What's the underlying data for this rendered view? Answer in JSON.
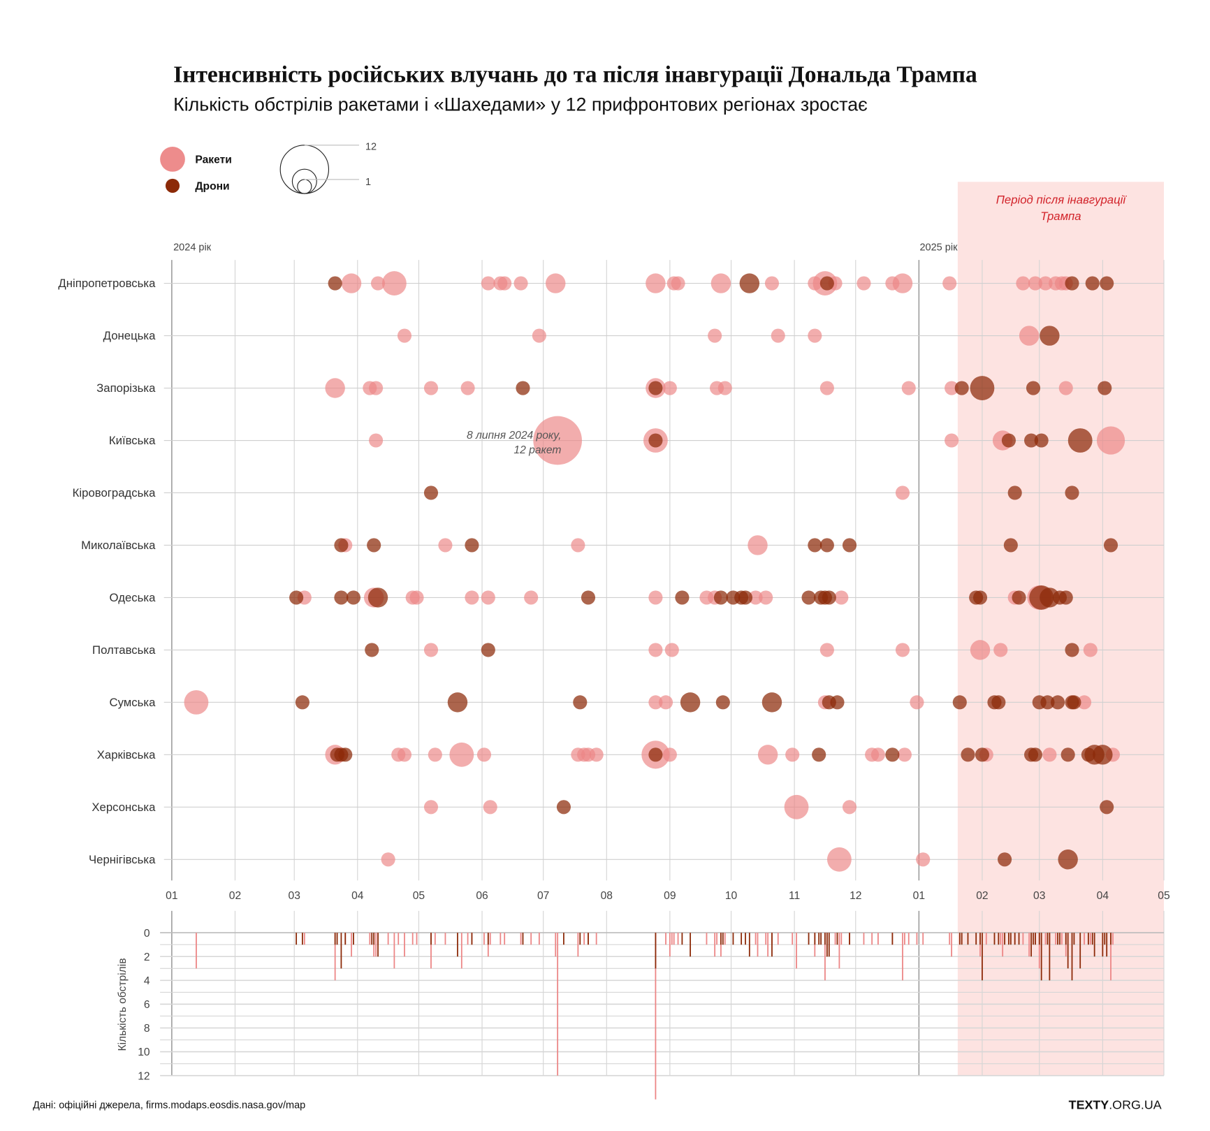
{
  "header": {
    "title": "Інтенсивність російських влучань до та після інавгурації Дональда Трампа",
    "subtitle": "Кількість обстрілів ракетами і «Шахедами» у 12 прифронтових регіонах зростає"
  },
  "legend": {
    "rockets_label": "Ракети",
    "drones_label": "Дрони",
    "size_max_label": "12",
    "size_min_label": "1"
  },
  "colors": {
    "rockets": "#ec8686",
    "drones": "#8c2a08",
    "period_bg": "#fde3e1",
    "period_text": "#d2232a"
  },
  "period": {
    "label_line1": "Період після інавгурації",
    "label_line2": "Трампа",
    "start": "2025-01-20",
    "end": "2025-05-01"
  },
  "year_labels": [
    {
      "date": "2024-01-01",
      "label": "2024 рік"
    },
    {
      "date": "2025-01-01",
      "label": "2025 рік"
    }
  ],
  "annotation": {
    "line1": "8 липня 2024 року,",
    "line2": "12 ракет"
  },
  "footer": {
    "source": "Дані: офіційні джерела, firms.modaps.eosdis.nasa.gov/map",
    "logo_bold": "TEXTY",
    "logo_rest": ".ORG.UA"
  },
  "chart_data": [
    {
      "type": "scatter",
      "title": "Інтенсивність російських влучань до та після інавгурації Дональда Трампа",
      "subtitle": "Кількість обстрілів ракетами і «Шахедами» у 12 прифронтових регіонах зростає",
      "xlim": [
        "2024-01-01",
        "2025-05-01"
      ],
      "x_ticks": [
        {
          "date": "2024-01-01",
          "label": "01"
        },
        {
          "date": "2024-02-01",
          "label": "02"
        },
        {
          "date": "2024-03-01",
          "label": "03"
        },
        {
          "date": "2024-04-01",
          "label": "04"
        },
        {
          "date": "2024-05-01",
          "label": "05"
        },
        {
          "date": "2024-06-01",
          "label": "06"
        },
        {
          "date": "2024-07-01",
          "label": "07"
        },
        {
          "date": "2024-08-01",
          "label": "08"
        },
        {
          "date": "2024-09-01",
          "label": "09"
        },
        {
          "date": "2024-10-01",
          "label": "10"
        },
        {
          "date": "2024-11-01",
          "label": "11"
        },
        {
          "date": "2024-12-01",
          "label": "12"
        },
        {
          "date": "2025-01-01",
          "label": "01"
        },
        {
          "date": "2025-02-01",
          "label": "02"
        },
        {
          "date": "2025-03-01",
          "label": "03"
        },
        {
          "date": "2025-04-01",
          "label": "04"
        },
        {
          "date": "2025-05-01",
          "label": "05"
        }
      ],
      "grid": true,
      "size_encoding": "count",
      "series": [
        {
          "name": "Ракети"
        },
        {
          "name": "Дрони"
        }
      ],
      "regions": [
        {
          "name": "Дніпропетровська",
          "rockets": [
            [
              "2024-03-29",
              2
            ],
            [
              "2024-04-11",
              1
            ],
            [
              "2024-04-19",
              3
            ],
            [
              "2024-06-04",
              1
            ],
            [
              "2024-06-10",
              1
            ],
            [
              "2024-06-12",
              1
            ],
            [
              "2024-06-20",
              1
            ],
            [
              "2024-07-07",
              2
            ],
            [
              "2024-08-25",
              2
            ],
            [
              "2024-09-03",
              1
            ],
            [
              "2024-09-05",
              1
            ],
            [
              "2024-09-26",
              2
            ],
            [
              "2024-10-21",
              1
            ],
            [
              "2024-11-11",
              1
            ],
            [
              "2024-11-16",
              3
            ],
            [
              "2024-11-21",
              1
            ],
            [
              "2024-12-05",
              1
            ],
            [
              "2024-12-19",
              1
            ],
            [
              "2024-12-24",
              2
            ],
            [
              "2025-01-16",
              1
            ],
            [
              "2025-02-21",
              1
            ],
            [
              "2025-02-27",
              1
            ],
            [
              "2025-03-04",
              1
            ],
            [
              "2025-03-09",
              1
            ],
            [
              "2025-03-12",
              1
            ],
            [
              "2025-03-14",
              1
            ]
          ],
          "drones": [
            [
              "2024-03-21",
              1
            ],
            [
              "2024-10-10",
              2
            ],
            [
              "2024-11-17",
              1
            ],
            [
              "2025-03-17",
              1
            ],
            [
              "2025-03-27",
              1
            ],
            [
              "2025-04-03",
              1
            ]
          ]
        },
        {
          "name": "Донецька",
          "rockets": [
            [
              "2024-04-24",
              1
            ],
            [
              "2024-06-29",
              1
            ],
            [
              "2024-09-23",
              1
            ],
            [
              "2024-10-24",
              1
            ],
            [
              "2024-11-11",
              1
            ],
            [
              "2025-02-24",
              2
            ]
          ],
          "drones": [
            [
              "2025-03-06",
              2
            ]
          ]
        },
        {
          "name": "Запорізька",
          "rockets": [
            [
              "2024-03-21",
              2
            ],
            [
              "2024-04-07",
              1
            ],
            [
              "2024-04-10",
              1
            ],
            [
              "2024-05-07",
              1
            ],
            [
              "2024-05-25",
              1
            ],
            [
              "2024-08-25",
              2
            ],
            [
              "2024-09-01",
              1
            ],
            [
              "2024-09-24",
              1
            ],
            [
              "2024-09-28",
              1
            ],
            [
              "2024-11-17",
              1
            ],
            [
              "2024-12-27",
              1
            ],
            [
              "2025-01-17",
              1
            ],
            [
              "2025-03-14",
              1
            ]
          ],
          "drones": [
            [
              "2024-06-21",
              1
            ],
            [
              "2024-08-25",
              1
            ],
            [
              "2025-01-22",
              1
            ],
            [
              "2025-02-01",
              3
            ],
            [
              "2025-02-26",
              1
            ],
            [
              "2025-04-02",
              1
            ]
          ]
        },
        {
          "name": "Київська",
          "rockets": [
            [
              "2024-04-10",
              1
            ],
            [
              "2024-07-08",
              12
            ],
            [
              "2024-08-25",
              3
            ],
            [
              "2025-01-17",
              1
            ],
            [
              "2025-02-11",
              2
            ],
            [
              "2025-04-05",
              4
            ]
          ],
          "drones": [
            [
              "2024-08-25",
              1
            ],
            [
              "2025-02-14",
              1
            ],
            [
              "2025-02-25",
              1
            ],
            [
              "2025-03-02",
              1
            ],
            [
              "2025-03-21",
              3
            ]
          ]
        },
        {
          "name": "Кіровоградська",
          "rockets": [
            [
              "2024-12-24",
              1
            ]
          ],
          "drones": [
            [
              "2024-05-07",
              1
            ],
            [
              "2025-02-17",
              1
            ],
            [
              "2025-03-17",
              1
            ]
          ]
        },
        {
          "name": "Миколаївська",
          "rockets": [
            [
              "2024-03-26",
              1
            ],
            [
              "2024-05-14",
              1
            ],
            [
              "2024-07-18",
              1
            ],
            [
              "2024-10-14",
              2
            ]
          ],
          "drones": [
            [
              "2024-03-24",
              1
            ],
            [
              "2024-04-09",
              1
            ],
            [
              "2024-05-27",
              1
            ],
            [
              "2024-11-11",
              1
            ],
            [
              "2024-11-17",
              1
            ],
            [
              "2024-11-28",
              1
            ],
            [
              "2025-02-15",
              1
            ],
            [
              "2025-04-05",
              1
            ]
          ]
        },
        {
          "name": "Одеська",
          "rockets": [
            [
              "2024-03-06",
              1
            ],
            [
              "2024-04-09",
              2
            ],
            [
              "2024-04-28",
              1
            ],
            [
              "2024-04-30",
              1
            ],
            [
              "2024-05-27",
              1
            ],
            [
              "2024-06-04",
              1
            ],
            [
              "2024-06-25",
              1
            ],
            [
              "2024-08-25",
              1
            ],
            [
              "2024-09-19",
              1
            ],
            [
              "2024-09-23",
              1
            ],
            [
              "2024-10-13",
              1
            ],
            [
              "2024-10-18",
              1
            ],
            [
              "2024-11-24",
              1
            ],
            [
              "2025-02-17",
              1
            ],
            [
              "2025-03-01",
              3
            ]
          ],
          "drones": [
            [
              "2024-03-02",
              1
            ],
            [
              "2024-03-24",
              1
            ],
            [
              "2024-03-30",
              1
            ],
            [
              "2024-04-11",
              2
            ],
            [
              "2024-07-23",
              1
            ],
            [
              "2024-09-07",
              1
            ],
            [
              "2024-09-26",
              1
            ],
            [
              "2024-10-02",
              1
            ],
            [
              "2024-10-06",
              1
            ],
            [
              "2024-10-08",
              1
            ],
            [
              "2024-11-08",
              1
            ],
            [
              "2024-11-14",
              1
            ],
            [
              "2024-11-16",
              1
            ],
            [
              "2024-11-18",
              1
            ],
            [
              "2025-01-29",
              1
            ],
            [
              "2025-01-31",
              1
            ],
            [
              "2025-02-19",
              1
            ],
            [
              "2025-03-02",
              3
            ],
            [
              "2025-03-06",
              2
            ],
            [
              "2025-03-11",
              1
            ],
            [
              "2025-03-14",
              1
            ]
          ]
        },
        {
          "name": "Полтавська",
          "rockets": [
            [
              "2024-05-07",
              1
            ],
            [
              "2024-08-25",
              1
            ],
            [
              "2024-09-02",
              1
            ],
            [
              "2024-11-17",
              1
            ],
            [
              "2024-12-24",
              1
            ],
            [
              "2025-01-31",
              2
            ],
            [
              "2025-02-10",
              1
            ],
            [
              "2025-03-26",
              1
            ]
          ],
          "drones": [
            [
              "2024-04-08",
              1
            ],
            [
              "2024-06-04",
              1
            ],
            [
              "2025-03-17",
              1
            ]
          ]
        },
        {
          "name": "Сумська",
          "rockets": [
            [
              "2024-01-13",
              3
            ],
            [
              "2024-08-25",
              1
            ],
            [
              "2024-08-30",
              1
            ],
            [
              "2024-11-16",
              1
            ],
            [
              "2024-12-31",
              1
            ],
            [
              "2025-03-23",
              1
            ]
          ],
          "drones": [
            [
              "2024-03-05",
              1
            ],
            [
              "2024-05-20",
              2
            ],
            [
              "2024-07-19",
              1
            ],
            [
              "2024-09-11",
              2
            ],
            [
              "2024-09-27",
              1
            ],
            [
              "2024-10-21",
              2
            ],
            [
              "2024-11-18",
              1
            ],
            [
              "2024-11-22",
              1
            ],
            [
              "2025-01-21",
              1
            ],
            [
              "2025-02-07",
              1
            ],
            [
              "2025-02-09",
              1
            ],
            [
              "2025-03-01",
              1
            ],
            [
              "2025-03-05",
              1
            ],
            [
              "2025-03-10",
              1
            ],
            [
              "2025-03-17",
              1
            ],
            [
              "2025-03-18",
              1
            ]
          ]
        },
        {
          "name": "Харківська",
          "rockets": [
            [
              "2024-03-21",
              2
            ],
            [
              "2024-04-21",
              1
            ],
            [
              "2024-04-24",
              1
            ],
            [
              "2024-05-09",
              1
            ],
            [
              "2024-05-22",
              3
            ],
            [
              "2024-06-02",
              1
            ],
            [
              "2024-07-18",
              1
            ],
            [
              "2024-07-21",
              1
            ],
            [
              "2024-07-23",
              1
            ],
            [
              "2024-07-27",
              1
            ],
            [
              "2024-08-25",
              4
            ],
            [
              "2024-09-01",
              1
            ],
            [
              "2024-10-19",
              2
            ],
            [
              "2024-10-31",
              1
            ],
            [
              "2024-12-09",
              1
            ],
            [
              "2024-12-12",
              1
            ],
            [
              "2024-12-25",
              1
            ],
            [
              "2025-02-03",
              1
            ],
            [
              "2025-03-06",
              1
            ],
            [
              "2025-04-06",
              1
            ]
          ],
          "drones": [
            [
              "2024-03-22",
              1
            ],
            [
              "2024-03-24",
              1
            ],
            [
              "2024-03-26",
              1
            ],
            [
              "2024-08-25",
              1
            ],
            [
              "2024-11-13",
              1
            ],
            [
              "2024-12-19",
              1
            ],
            [
              "2025-01-25",
              1
            ],
            [
              "2025-02-01",
              1
            ],
            [
              "2025-02-25",
              1
            ],
            [
              "2025-02-27",
              1
            ],
            [
              "2025-03-15",
              1
            ],
            [
              "2025-03-25",
              1
            ],
            [
              "2025-03-28",
              2
            ],
            [
              "2025-04-01",
              2
            ]
          ]
        },
        {
          "name": "Херсонська",
          "rockets": [
            [
              "2024-05-07",
              1
            ],
            [
              "2024-06-05",
              1
            ],
            [
              "2024-11-02",
              3
            ],
            [
              "2024-11-28",
              1
            ]
          ],
          "drones": [
            [
              "2024-07-11",
              1
            ],
            [
              "2025-04-03",
              1
            ]
          ]
        },
        {
          "name": "Чернігівська",
          "rockets": [
            [
              "2024-04-16",
              1
            ],
            [
              "2024-11-23",
              3
            ],
            [
              "2025-01-03",
              1
            ]
          ],
          "drones": [
            [
              "2025-02-12",
              1
            ],
            [
              "2025-03-15",
              2
            ]
          ]
        }
      ]
    },
    {
      "type": "bar",
      "ylabel": "Кількість обстрілів",
      "ylim": [
        0,
        12
      ],
      "y_ticks": [
        "0",
        "2",
        "4",
        "6",
        "8",
        "10",
        "12"
      ],
      "y_inverted": true,
      "grid": true
    }
  ]
}
